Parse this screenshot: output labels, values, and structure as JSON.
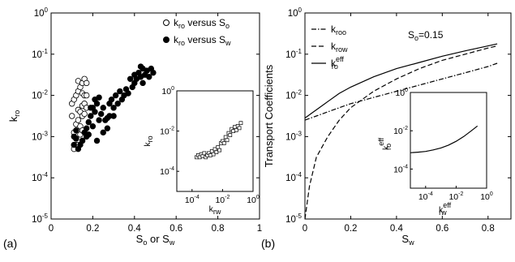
{
  "chart_data": [
    {
      "panel_label": "(a)",
      "type": "scatter",
      "xlabel": {
        "parts": [
          "S",
          "o",
          " or S",
          "w"
        ]
      },
      "ylabel": {
        "parts": [
          "k",
          "ro"
        ]
      },
      "xlim": [
        0,
        1
      ],
      "ylim_log10": [
        -5,
        0
      ],
      "x_scale": "linear",
      "y_scale": "log",
      "x_ticks": [
        "0",
        "0.2",
        "0.4",
        "0.6",
        "0.8",
        "1"
      ],
      "y_ticks": [
        {
          "base": "10",
          "exp": "-5"
        },
        {
          "base": "10",
          "exp": "-4"
        },
        {
          "base": "10",
          "exp": "-3"
        },
        {
          "base": "10",
          "exp": "-2"
        },
        {
          "base": "10",
          "exp": "-1"
        },
        {
          "base": "10",
          "exp": "0"
        }
      ],
      "legend": [
        {
          "marker": "open-circle",
          "parts": [
            "k",
            "ro",
            " versus S",
            "o"
          ]
        },
        {
          "marker": "filled-circle",
          "parts": [
            "k",
            "ro",
            " versus S",
            "w"
          ]
        }
      ],
      "legend_position": "top-right",
      "series": [
        {
          "marker": "open-circle",
          "points": [
            [
              0.1,
              -2.5
            ],
            [
              0.1,
              -2.2
            ],
            [
              0.11,
              -2.1
            ],
            [
              0.11,
              -2.9
            ],
            [
              0.11,
              -3.2
            ],
            [
              0.11,
              -3.3
            ],
            [
              0.12,
              -2.0
            ],
            [
              0.12,
              -2.7
            ],
            [
              0.12,
              -3.05
            ],
            [
              0.12,
              -3.2
            ],
            [
              0.13,
              -1.65
            ],
            [
              0.13,
              -1.9
            ],
            [
              0.13,
              -2.35
            ],
            [
              0.13,
              -2.6
            ],
            [
              0.13,
              -3.2
            ],
            [
              0.14,
              -1.8
            ],
            [
              0.14,
              -2.4
            ],
            [
              0.14,
              -2.75
            ],
            [
              0.14,
              -2.95
            ],
            [
              0.15,
              -1.7
            ],
            [
              0.15,
              -1.95
            ],
            [
              0.15,
              -2.25
            ],
            [
              0.15,
              -2.5
            ],
            [
              0.15,
              -2.85
            ],
            [
              0.15,
              -3.1
            ],
            [
              0.16,
              -1.6
            ],
            [
              0.16,
              -2.0
            ],
            [
              0.16,
              -2.2
            ],
            [
              0.16,
              -2.45
            ],
            [
              0.17,
              -1.7
            ],
            [
              0.17,
              -2.0
            ],
            [
              0.17,
              -2.3
            ]
          ]
        },
        {
          "marker": "filled-circle",
          "points": [
            [
              0.11,
              -3.0
            ],
            [
              0.11,
              -3.2
            ],
            [
              0.12,
              -2.85
            ],
            [
              0.12,
              -3.05
            ],
            [
              0.13,
              -3.3
            ],
            [
              0.14,
              -3.2
            ],
            [
              0.15,
              -3.1
            ],
            [
              0.16,
              -2.9
            ],
            [
              0.17,
              -2.8
            ],
            [
              0.17,
              -3.0
            ],
            [
              0.18,
              -2.65
            ],
            [
              0.18,
              -2.95
            ],
            [
              0.19,
              -2.3
            ],
            [
              0.19,
              -2.5
            ],
            [
              0.2,
              -2.3
            ],
            [
              0.2,
              -2.75
            ],
            [
              0.21,
              -2.1
            ],
            [
              0.21,
              -2.4
            ],
            [
              0.22,
              -3.1
            ],
            [
              0.22,
              -2.2
            ],
            [
              0.23,
              -2.6
            ],
            [
              0.23,
              -2.05
            ],
            [
              0.24,
              -2.45
            ],
            [
              0.25,
              -2.3
            ],
            [
              0.25,
              -2.9
            ],
            [
              0.26,
              -2.6
            ],
            [
              0.27,
              -2.8
            ],
            [
              0.27,
              -2.55
            ],
            [
              0.28,
              -2.5
            ],
            [
              0.28,
              -2.2
            ],
            [
              0.29,
              -2.1
            ],
            [
              0.3,
              -2.3
            ],
            [
              0.3,
              -2.5
            ],
            [
              0.31,
              -2.0
            ],
            [
              0.32,
              -2.2
            ],
            [
              0.33,
              -1.9
            ],
            [
              0.34,
              -2.1
            ],
            [
              0.35,
              -2.0
            ],
            [
              0.36,
              -1.85
            ],
            [
              0.37,
              -1.95
            ],
            [
              0.38,
              -1.6
            ],
            [
              0.39,
              -1.8
            ],
            [
              0.4,
              -1.5
            ],
            [
              0.4,
              -1.7
            ],
            [
              0.41,
              -1.6
            ],
            [
              0.42,
              -1.45
            ],
            [
              0.43,
              -1.55
            ],
            [
              0.43,
              -1.3
            ],
            [
              0.44,
              -1.7
            ],
            [
              0.44,
              -1.35
            ],
            [
              0.45,
              -1.5
            ],
            [
              0.46,
              -1.4
            ],
            [
              0.47,
              -1.55
            ],
            [
              0.48,
              -1.35
            ],
            [
              0.49,
              -1.45
            ]
          ]
        }
      ],
      "inset": {
        "type": "scatter",
        "xlabel": {
          "parts": [
            "k",
            "rw"
          ]
        },
        "ylabel": {
          "parts": [
            "k",
            "ro"
          ]
        },
        "xlim_log10": [
          -5,
          0
        ],
        "ylim_log10": [
          -5,
          0
        ],
        "x_ticks": [
          {
            "base": "10",
            "exp": "-4"
          },
          {
            "base": "10",
            "exp": "-2"
          },
          {
            "base": "10",
            "exp": "0"
          }
        ],
        "y_ticks": [
          {
            "base": "10",
            "exp": "-4"
          },
          {
            "base": "10",
            "exp": "-2"
          },
          {
            "base": "10",
            "exp": "0"
          }
        ],
        "marker": "open-square",
        "points": [
          [
            -3.7,
            -3.3
          ],
          [
            -3.6,
            -3.2
          ],
          [
            -3.5,
            -3.3
          ],
          [
            -3.4,
            -3.15
          ],
          [
            -3.3,
            -3.25
          ],
          [
            -3.2,
            -3.1
          ],
          [
            -3.1,
            -3.3
          ],
          [
            -3.0,
            -3.2
          ],
          [
            -2.9,
            -3.1
          ],
          [
            -2.8,
            -3.2
          ],
          [
            -2.7,
            -3.0
          ],
          [
            -2.6,
            -3.15
          ],
          [
            -2.5,
            -2.9
          ],
          [
            -2.4,
            -3.05
          ],
          [
            -2.3,
            -2.8
          ],
          [
            -2.2,
            -2.95
          ],
          [
            -2.1,
            -2.6
          ],
          [
            -2.0,
            -2.5
          ],
          [
            -1.9,
            -2.6
          ],
          [
            -1.8,
            -2.3
          ],
          [
            -1.7,
            -2.45
          ],
          [
            -1.6,
            -2.1
          ],
          [
            -1.5,
            -2.2
          ],
          [
            -1.4,
            -1.9
          ],
          [
            -1.3,
            -2.0
          ],
          [
            -1.2,
            -1.8
          ],
          [
            -1.1,
            -1.95
          ],
          [
            -1.0,
            -1.75
          ],
          [
            -0.9,
            -1.85
          ],
          [
            -0.8,
            -1.6
          ]
        ]
      }
    },
    {
      "panel_label": "(b)",
      "type": "line",
      "xlabel": {
        "parts": [
          "S",
          "w"
        ]
      },
      "ylabel": {
        "text": "Transport Coefficients"
      },
      "xlim": [
        0,
        0.9
      ],
      "ylim_log10": [
        -5,
        0
      ],
      "x_scale": "linear",
      "y_scale": "log",
      "x_ticks": [
        "0",
        "0.2",
        "0.4",
        "0.6",
        "0.8"
      ],
      "y_ticks": [
        {
          "base": "10",
          "exp": "-5"
        },
        {
          "base": "10",
          "exp": "-4"
        },
        {
          "base": "10",
          "exp": "-3"
        },
        {
          "base": "10",
          "exp": "-2"
        },
        {
          "base": "10",
          "exp": "-1"
        },
        {
          "base": "10",
          "exp": "0"
        }
      ],
      "annotation": {
        "parts": [
          "S",
          "o",
          "=0.15"
        ]
      },
      "legend_position": "top-left",
      "series": [
        {
          "style": "dash-dot",
          "label": {
            "main": "k",
            "sub": "roo",
            "sup": ""
          },
          "x": [
            0,
            0.05,
            0.1,
            0.15,
            0.2,
            0.3,
            0.4,
            0.5,
            0.6,
            0.7,
            0.8,
            0.84
          ],
          "y_log10": [
            -2.6,
            -2.5,
            -2.4,
            -2.3,
            -2.2,
            -2.05,
            -1.9,
            -1.75,
            -1.6,
            -1.45,
            -1.3,
            -1.22
          ]
        },
        {
          "style": "dashed",
          "label": {
            "main": "k",
            "sub": "row",
            "sup": ""
          },
          "x": [
            0,
            0.01,
            0.02,
            0.05,
            0.1,
            0.15,
            0.2,
            0.3,
            0.4,
            0.5,
            0.6,
            0.7,
            0.8,
            0.84
          ],
          "y_log10": [
            -5,
            -4.6,
            -4.2,
            -3.5,
            -3.0,
            -2.6,
            -2.3,
            -1.9,
            -1.6,
            -1.35,
            -1.15,
            -1.0,
            -0.85,
            -0.8
          ]
        },
        {
          "style": "solid",
          "label": {
            "main": "k",
            "sub": "ro",
            "sup": "eff"
          },
          "x": [
            0,
            0.05,
            0.1,
            0.15,
            0.2,
            0.3,
            0.4,
            0.5,
            0.6,
            0.7,
            0.8,
            0.84
          ],
          "y_log10": [
            -2.55,
            -2.35,
            -2.15,
            -1.95,
            -1.8,
            -1.55,
            -1.35,
            -1.2,
            -1.05,
            -0.92,
            -0.8,
            -0.75
          ]
        }
      ],
      "inset": {
        "type": "line",
        "xlabel": {
          "main": "k",
          "sub": "rw",
          "sup": "eff"
        },
        "ylabel": {
          "main": "k",
          "sub": "ro",
          "sup": "eff"
        },
        "xlim_log10": [
          -5,
          0
        ],
        "ylim_log10": [
          -5,
          0
        ],
        "x_ticks": [
          {
            "base": "10",
            "exp": "-4"
          },
          {
            "base": "10",
            "exp": "-2"
          },
          {
            "base": "10",
            "exp": "0"
          }
        ],
        "y_ticks": [
          {
            "base": "10",
            "exp": "-4"
          },
          {
            "base": "10",
            "exp": "-2"
          },
          {
            "base": "10",
            "exp": "0"
          }
        ],
        "x_log10": [
          -5,
          -4.5,
          -4,
          -3.5,
          -3,
          -2.5,
          -2,
          -1.5,
          -1,
          -0.6
        ],
        "y_log10": [
          -3.15,
          -3.12,
          -3.08,
          -3.0,
          -2.9,
          -2.75,
          -2.55,
          -2.3,
          -2.0,
          -1.75
        ]
      }
    }
  ]
}
